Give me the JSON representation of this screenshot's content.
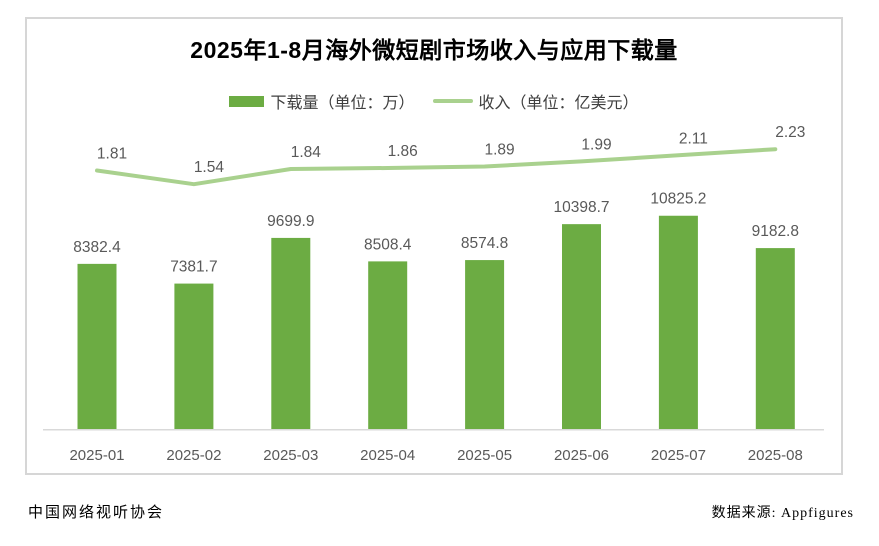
{
  "page": {
    "title": "2025年1-8月海外微短剧市场收入与应用下载量",
    "footer_left": "中国网络视听协会",
    "footer_right": "数据来源: Appfigures"
  },
  "legend": {
    "downloads_label": "下载量（单位：万）",
    "revenue_label": "收入（单位：亿美元）"
  },
  "colors": {
    "bar_green": "#6CAC43",
    "line_green": "#A9D18E",
    "label_gray": "#595959",
    "axis_line": "#D9D9D9",
    "card_border": "#D6D6D6",
    "title_black": "#000000"
  },
  "chart_data": {
    "type": "bar",
    "subtype": "bar-line-combo",
    "title": "2025年1-8月海外微短剧市场收入与应用下载量",
    "categories": [
      "2025-01",
      "2025-02",
      "2025-03",
      "2025-04",
      "2025-05",
      "2025-06",
      "2025-07",
      "2025-08"
    ],
    "series": [
      {
        "name": "下载量（单位：万）",
        "type": "bar",
        "color": "#6CAC43",
        "values": [
          8382.4,
          7381.7,
          9699.9,
          8508.4,
          8574.8,
          10398.7,
          10825.2,
          9182.8
        ]
      },
      {
        "name": "收入（单位：亿美元）",
        "type": "line",
        "color": "#A9D18E",
        "values": [
          1.81,
          1.54,
          1.84,
          1.86,
          1.89,
          1.99,
          2.11,
          2.23
        ]
      }
    ],
    "xlabel": "",
    "ylabel": "",
    "ylim_bar": [
      0,
      20800
    ],
    "ylim_line": [
      0,
      4.8
    ],
    "grid": false,
    "legend_position": "top",
    "data_labels": true
  }
}
